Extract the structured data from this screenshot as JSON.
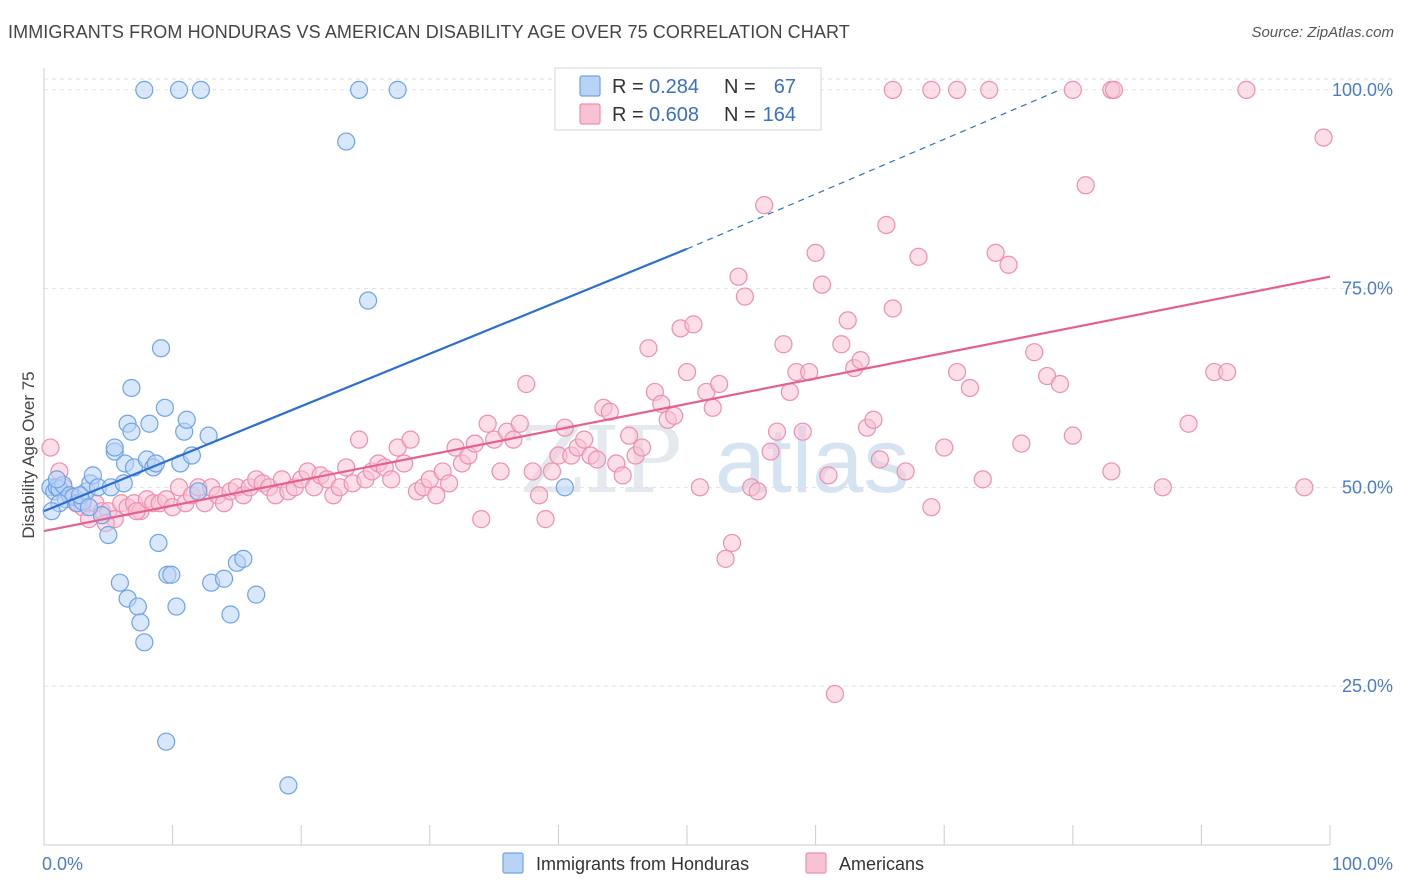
{
  "title": "IMMIGRANTS FROM HONDURAS VS AMERICAN DISABILITY AGE OVER 75 CORRELATION CHART",
  "source": "Source: ZipAtlas.com",
  "watermark": {
    "zip": "ZIP",
    "atlas": "atlas"
  },
  "chart_data": {
    "type": "scatter",
    "title": "IMMIGRANTS FROM HONDURAS VS AMERICAN DISABILITY AGE OVER 75 CORRELATION CHART",
    "xlabel": "",
    "ylabel": "Disability Age Over 75",
    "xlim": [
      0,
      100
    ],
    "ylim": [
      5,
      102
    ],
    "x_tick_labels": [
      "0.0%",
      "100.0%"
    ],
    "y_ticks": [
      {
        "value": 25,
        "label": "25.0%"
      },
      {
        "value": 50,
        "label": "50.0%"
      },
      {
        "value": 75,
        "label": "75.0%"
      },
      {
        "value": 100,
        "label": "100.0%"
      }
    ],
    "legend": [
      {
        "r_label": "R =",
        "r": "0.284",
        "n_label": "N =",
        "n": "67"
      },
      {
        "r_label": "R =",
        "r": "0.608",
        "n_label": "N =",
        "n": "164"
      }
    ],
    "series": [
      {
        "name": "Immigrants from Honduras",
        "color": "#6fa3e8",
        "fill": "#b9d3f5",
        "line_color": "#2d6fcf",
        "trend": {
          "x0": 0,
          "y0": 47.0,
          "x1": 50,
          "y1": 80.0,
          "dash_to_x": 79,
          "dash_to_y": 100
        },
        "points": [
          [
            0.5,
            50
          ],
          [
            0.8,
            49.5
          ],
          [
            1.0,
            50
          ],
          [
            1.2,
            49.8
          ],
          [
            1.5,
            50.3
          ],
          [
            1.7,
            48.5
          ],
          [
            2.0,
            49
          ],
          [
            2.3,
            48.8
          ],
          [
            2.6,
            48
          ],
          [
            3.0,
            48.2
          ],
          [
            3.3,
            49.5
          ],
          [
            3.6,
            50.5
          ],
          [
            3.8,
            51.5
          ],
          [
            4.2,
            50
          ],
          [
            4.5,
            46.5
          ],
          [
            5.0,
            44
          ],
          [
            5.2,
            50
          ],
          [
            5.5,
            54.5
          ],
          [
            5.5,
            55
          ],
          [
            5.9,
            38
          ],
          [
            6.2,
            50.5
          ],
          [
            6.3,
            53
          ],
          [
            6.5,
            36
          ],
          [
            6.5,
            58
          ],
          [
            6.8,
            57
          ],
          [
            6.8,
            62.5
          ],
          [
            7.0,
            52.5
          ],
          [
            7.3,
            35
          ],
          [
            7.5,
            33
          ],
          [
            7.8,
            30.5
          ],
          [
            8.0,
            53.5
          ],
          [
            8.2,
            58
          ],
          [
            8.5,
            52.5
          ],
          [
            8.7,
            53
          ],
          [
            8.9,
            43
          ],
          [
            9.1,
            67.5
          ],
          [
            9.4,
            60
          ],
          [
            9.6,
            39
          ],
          [
            9.9,
            39
          ],
          [
            10.3,
            35
          ],
          [
            10.6,
            53
          ],
          [
            10.9,
            57
          ],
          [
            11.1,
            58.5
          ],
          [
            11.5,
            54
          ],
          [
            12.0,
            49.5
          ],
          [
            12.8,
            56.5
          ],
          [
            13.0,
            38
          ],
          [
            14.0,
            38.5
          ],
          [
            14.5,
            34
          ],
          [
            15.0,
            40.5
          ],
          [
            15.5,
            41
          ],
          [
            16.5,
            36.5
          ],
          [
            7.8,
            100
          ],
          [
            10.5,
            100
          ],
          [
            12.2,
            100
          ],
          [
            24.5,
            100
          ],
          [
            27.5,
            100
          ],
          [
            23.5,
            93.5
          ],
          [
            25.2,
            73.5
          ],
          [
            19.0,
            12.5
          ],
          [
            9.5,
            18
          ],
          [
            40.5,
            50
          ],
          [
            1.2,
            48
          ],
          [
            2.8,
            49
          ],
          [
            3.5,
            47.5
          ],
          [
            0.6,
            47
          ],
          [
            1.0,
            51
          ]
        ]
      },
      {
        "name": "Americans",
        "color": "#ef8fae",
        "fill": "#f7c3d4",
        "line_color": "#e4608e",
        "trend": {
          "x0": 0,
          "y0": 44.5,
          "x1": 100,
          "y1": 76.5
        },
        "points": [
          [
            0.5,
            55
          ],
          [
            1.2,
            52
          ],
          [
            1.5,
            50
          ],
          [
            2.0,
            49
          ],
          [
            2.5,
            48
          ],
          [
            3.0,
            47.5
          ],
          [
            3.5,
            46
          ],
          [
            4.0,
            48
          ],
          [
            4.5,
            47
          ],
          [
            5.0,
            47
          ],
          [
            5.5,
            46
          ],
          [
            6.0,
            48
          ],
          [
            6.5,
            47.5
          ],
          [
            7.0,
            48
          ],
          [
            7.5,
            47
          ],
          [
            8.0,
            48.5
          ],
          [
            8.5,
            48
          ],
          [
            9.0,
            48
          ],
          [
            9.5,
            48.5
          ],
          [
            10.0,
            47.5
          ],
          [
            10.5,
            50
          ],
          [
            11.0,
            48
          ],
          [
            11.5,
            49
          ],
          [
            12.0,
            50
          ],
          [
            12.5,
            48
          ],
          [
            13.0,
            50
          ],
          [
            13.5,
            49
          ],
          [
            14.0,
            48
          ],
          [
            14.5,
            49.5
          ],
          [
            15.0,
            50
          ],
          [
            15.5,
            49
          ],
          [
            16.0,
            50
          ],
          [
            16.5,
            51
          ],
          [
            17.0,
            50.5
          ],
          [
            17.5,
            50
          ],
          [
            18.0,
            49
          ],
          [
            18.5,
            51
          ],
          [
            19.0,
            49.5
          ],
          [
            19.5,
            50
          ],
          [
            20.0,
            51
          ],
          [
            20.5,
            52
          ],
          [
            21.0,
            50
          ],
          [
            21.5,
            51.5
          ],
          [
            22.0,
            51
          ],
          [
            22.5,
            49
          ],
          [
            23.0,
            50
          ],
          [
            23.5,
            52.5
          ],
          [
            24.0,
            50.5
          ],
          [
            24.5,
            56
          ],
          [
            25.0,
            51
          ],
          [
            25.5,
            52
          ],
          [
            26.0,
            53
          ],
          [
            26.5,
            52.5
          ],
          [
            27.0,
            51
          ],
          [
            27.5,
            55
          ],
          [
            28.0,
            53
          ],
          [
            28.5,
            56
          ],
          [
            29.0,
            49.5
          ],
          [
            29.5,
            50
          ],
          [
            30.0,
            51
          ],
          [
            30.5,
            49
          ],
          [
            31.0,
            52
          ],
          [
            31.5,
            50.5
          ],
          [
            32.0,
            55
          ],
          [
            32.5,
            53
          ],
          [
            33.0,
            54
          ],
          [
            33.5,
            55.5
          ],
          [
            34.0,
            46
          ],
          [
            34.5,
            58
          ],
          [
            35.0,
            56
          ],
          [
            35.5,
            52
          ],
          [
            36.0,
            57
          ],
          [
            36.5,
            56
          ],
          [
            37.0,
            58
          ],
          [
            37.5,
            63
          ],
          [
            38.0,
            52
          ],
          [
            38.5,
            49
          ],
          [
            39.0,
            46
          ],
          [
            39.5,
            52
          ],
          [
            40.0,
            54
          ],
          [
            40.5,
            57.5
          ],
          [
            41.0,
            54
          ],
          [
            41.5,
            55
          ],
          [
            42.0,
            56
          ],
          [
            42.5,
            54
          ],
          [
            43.0,
            53.5
          ],
          [
            43.5,
            60
          ],
          [
            44.0,
            59.5
          ],
          [
            44.5,
            53
          ],
          [
            45.0,
            51.5
          ],
          [
            45.5,
            56.5
          ],
          [
            46.0,
            54
          ],
          [
            46.5,
            55
          ],
          [
            47.0,
            67.5
          ],
          [
            47.5,
            62
          ],
          [
            48.0,
            60.5
          ],
          [
            48.5,
            58.5
          ],
          [
            49.0,
            59
          ],
          [
            49.5,
            70
          ],
          [
            50.0,
            64.5
          ],
          [
            50.5,
            70.5
          ],
          [
            51.0,
            50
          ],
          [
            51.5,
            62
          ],
          [
            52.0,
            60
          ],
          [
            52.5,
            63
          ],
          [
            53.0,
            41
          ],
          [
            53.5,
            43
          ],
          [
            54.0,
            76.5
          ],
          [
            54.5,
            74
          ],
          [
            55.0,
            50
          ],
          [
            55.5,
            49.5
          ],
          [
            56.0,
            85.5
          ],
          [
            56.5,
            54.5
          ],
          [
            57.0,
            57
          ],
          [
            57.5,
            68
          ],
          [
            58.0,
            62
          ],
          [
            58.5,
            64.5
          ],
          [
            59.0,
            57
          ],
          [
            59.5,
            64.5
          ],
          [
            60.0,
            79.5
          ],
          [
            60.5,
            75.5
          ],
          [
            61.0,
            51.5
          ],
          [
            61.5,
            24
          ],
          [
            62.0,
            68
          ],
          [
            62.5,
            71
          ],
          [
            63.0,
            65
          ],
          [
            63.5,
            66
          ],
          [
            64.0,
            57.5
          ],
          [
            64.5,
            58.5
          ],
          [
            65.0,
            53.5
          ],
          [
            65.5,
            83
          ],
          [
            66.0,
            72.5
          ],
          [
            67.0,
            52
          ],
          [
            68.0,
            79
          ],
          [
            69.0,
            47.5
          ],
          [
            70.0,
            55
          ],
          [
            71.0,
            64.5
          ],
          [
            72.0,
            62.5
          ],
          [
            73.0,
            51
          ],
          [
            74.0,
            79.5
          ],
          [
            75.0,
            78
          ],
          [
            76.0,
            55.5
          ],
          [
            77.0,
            67
          ],
          [
            78.0,
            64
          ],
          [
            79.0,
            63
          ],
          [
            80.0,
            56.5
          ],
          [
            81.0,
            88
          ],
          [
            83.0,
            52
          ],
          [
            87.0,
            50
          ],
          [
            89.0,
            58
          ],
          [
            91.0,
            64.5
          ],
          [
            92.0,
            64.5
          ],
          [
            98.0,
            50
          ],
          [
            99.5,
            94
          ],
          [
            66.0,
            100
          ],
          [
            69.0,
            100
          ],
          [
            71.0,
            100
          ],
          [
            73.5,
            100
          ],
          [
            80.0,
            100
          ],
          [
            83.0,
            100
          ],
          [
            83.2,
            100
          ],
          [
            93.5,
            100
          ],
          [
            4.8,
            45.5
          ],
          [
            7.2,
            47
          ]
        ]
      }
    ]
  }
}
